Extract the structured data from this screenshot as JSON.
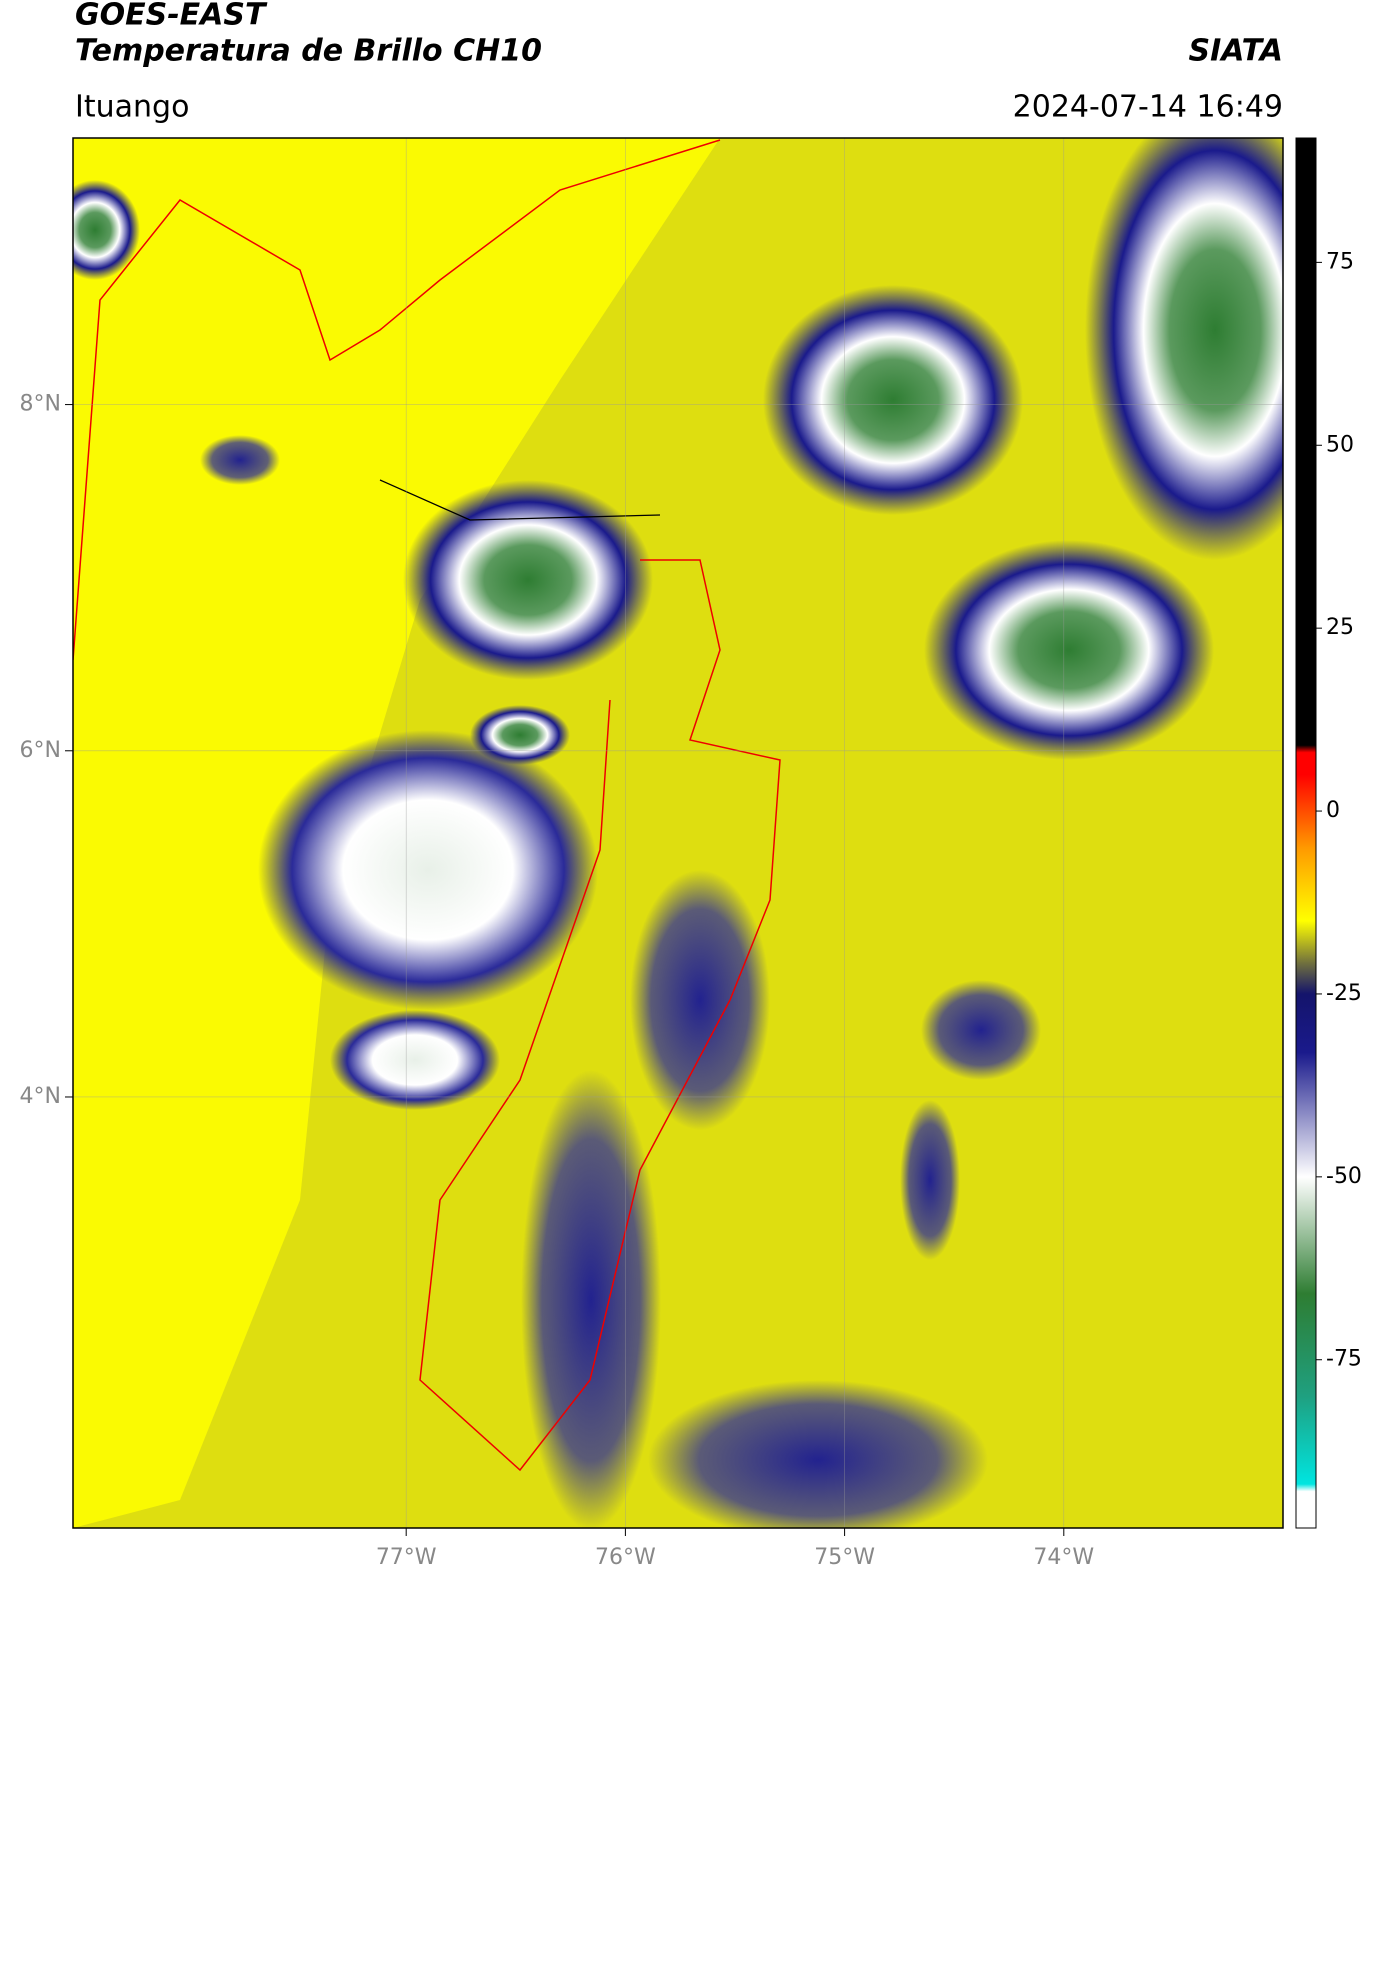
{
  "chart_data": {
    "type": "map",
    "title": "GOES-EAST",
    "subtitle": "Temperatura de Brillo CH10",
    "source": "SIATA",
    "region": "Ituango",
    "datetime": "2024-07-14 16:49",
    "xlim": [
      -78.52,
      -73.0
    ],
    "ylim": [
      1.51,
      9.54
    ],
    "xticks": [
      {
        "value": -77,
        "label": "77°W"
      },
      {
        "value": -76,
        "label": "76°W"
      },
      {
        "value": -75,
        "label": "75°W"
      },
      {
        "value": -74,
        "label": "74°W"
      }
    ],
    "yticks": [
      {
        "value": 8,
        "label": "8°N"
      },
      {
        "value": 6,
        "label": "6°N"
      },
      {
        "value": 4,
        "label": "4°N"
      }
    ],
    "grid": true,
    "colorbar": {
      "lim": [
        -98,
        92
      ],
      "ticks": [
        75,
        50,
        25,
        0,
        -25,
        -50,
        -75
      ],
      "stops": [
        {
          "value": -98,
          "color": "#ffffff"
        },
        {
          "value": -93,
          "color": "#ffffff"
        },
        {
          "value": -92,
          "color": "#00e5e0"
        },
        {
          "value": -80,
          "color": "#1fa080"
        },
        {
          "value": -66,
          "color": "#2e7d32"
        },
        {
          "value": -50,
          "color": "#ffffff"
        },
        {
          "value": -33,
          "color": "#1a1a8c"
        },
        {
          "value": -25,
          "color": "#14146b"
        },
        {
          "value": -21,
          "color": "#6b6b40"
        },
        {
          "value": -15,
          "color": "#ffff00"
        },
        {
          "value": -5,
          "color": "#ff9900"
        },
        {
          "value": 5,
          "color": "#ff0000"
        },
        {
          "value": 8,
          "color": "#ff0000"
        },
        {
          "value": 9,
          "color": "#000000"
        },
        {
          "value": 92,
          "color": "#000000"
        }
      ]
    }
  }
}
